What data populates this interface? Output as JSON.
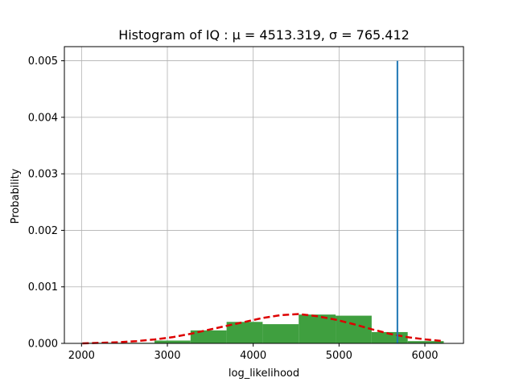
{
  "chart_data": {
    "type": "bar",
    "title": "Histogram of IQ : μ = 4513.319,  σ = 765.412",
    "xlabel": "log_likelihood",
    "ylabel": "Probability",
    "xlim": [
      1800,
      6450
    ],
    "ylim": [
      0,
      0.00525
    ],
    "grid": true,
    "xticks": [
      2000,
      3000,
      4000,
      5000,
      6000
    ],
    "xtick_labels": [
      "2000",
      "3000",
      "4000",
      "5000",
      "6000"
    ],
    "yticks": [
      0,
      0.001,
      0.002,
      0.003,
      0.004,
      0.005
    ],
    "ytick_labels": [
      "0.000",
      "0.001",
      "0.002",
      "0.003",
      "0.004",
      "0.005"
    ],
    "histogram": {
      "color": "#3f9f3f",
      "bins": [
        {
          "x0": 2010,
          "x1": 2430,
          "value": 1e-05
        },
        {
          "x0": 2430,
          "x1": 2850,
          "value": 1e-05
        },
        {
          "x0": 2850,
          "x1": 3270,
          "value": 5e-05
        },
        {
          "x0": 3270,
          "x1": 3690,
          "value": 0.00023
        },
        {
          "x0": 3690,
          "x1": 4110,
          "value": 0.00038
        },
        {
          "x0": 4110,
          "x1": 4530,
          "value": 0.00034
        },
        {
          "x0": 4530,
          "x1": 4960,
          "value": 0.00051
        },
        {
          "x0": 4960,
          "x1": 5380,
          "value": 0.00049
        },
        {
          "x0": 5380,
          "x1": 5800,
          "value": 0.0002
        },
        {
          "x0": 5800,
          "x1": 6220,
          "value": 4e-05
        }
      ]
    },
    "fit_curve": {
      "color": "#dd0000",
      "style": "dashed",
      "x": [
        2010,
        2220,
        2430,
        2640,
        2850,
        3060,
        3270,
        3480,
        3690,
        3900,
        4110,
        4320,
        4530,
        4750,
        4960,
        5170,
        5380,
        5590,
        5800,
        6010,
        6220
      ],
      "y": [
        0.0,
        1e-05,
        2e-05,
        4e-05,
        7e-05,
        0.00011,
        0.00017,
        0.00024,
        0.00031,
        0.00038,
        0.00045,
        0.0005,
        0.00052,
        0.00048,
        0.00042,
        0.00034,
        0.00025,
        0.00017,
        0.00011,
        7e-05,
        4e-05
      ]
    },
    "vline": {
      "x": 5680,
      "y0": 0,
      "y1": 0.005,
      "color": "#1f77b4"
    }
  }
}
